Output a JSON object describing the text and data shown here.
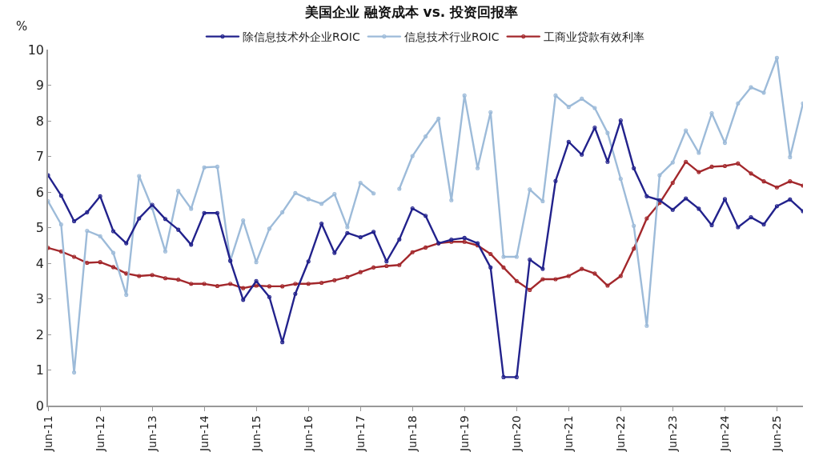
{
  "chart_data": {
    "type": "line",
    "title": "美国企业 融资成本 vs. 投资回报率",
    "ylabel": "%",
    "x": [
      "2011-06",
      "2011-09",
      "2011-12",
      "2012-03",
      "2012-06",
      "2012-09",
      "2012-12",
      "2013-03",
      "2013-06",
      "2013-09",
      "2013-12",
      "2014-03",
      "2014-06",
      "2014-09",
      "2014-12",
      "2015-03",
      "2015-06",
      "2015-09",
      "2015-12",
      "2016-03",
      "2016-06",
      "2016-09",
      "2016-12",
      "2017-03",
      "2017-06",
      "2017-09",
      "2017-12",
      "2018-03",
      "2018-06",
      "2018-09",
      "2018-12",
      "2019-03",
      "2019-06",
      "2019-09",
      "2019-12",
      "2020-03",
      "2020-06",
      "2020-09",
      "2020-12",
      "2021-03",
      "2021-06",
      "2021-09",
      "2021-12",
      "2022-03",
      "2022-06",
      "2022-09",
      "2022-12",
      "2023-03",
      "2023-06",
      "2023-09",
      "2023-12",
      "2024-03",
      "2024-06",
      "2024-09",
      "2024-12",
      "2025-03",
      "2025-06",
      "2025-09",
      "2025-12"
    ],
    "series": [
      {
        "name": "除信息技术外企业ROIC",
        "color": "#22228c",
        "values": [
          6.47,
          5.9,
          5.18,
          5.43,
          5.88,
          4.9,
          4.56,
          5.26,
          5.64,
          5.24,
          4.94,
          4.52,
          5.41,
          5.41,
          4.07,
          2.97,
          3.5,
          3.05,
          1.78,
          3.14,
          4.05,
          5.11,
          4.29,
          4.85,
          4.73,
          4.88,
          4.05,
          4.67,
          5.54,
          5.33,
          4.56,
          4.66,
          4.71,
          4.56,
          3.88,
          0.8,
          0.8,
          4.1,
          3.84,
          6.31,
          7.41,
          7.05,
          7.81,
          6.85,
          8.01,
          6.67,
          5.88,
          5.77,
          5.5,
          5.82,
          5.53,
          5.07,
          5.8,
          5.01,
          5.29,
          5.09,
          5.6,
          5.79,
          5.46
        ]
      },
      {
        "name": "信息技术行业ROIC",
        "color": "#9dbbd9",
        "values": [
          5.74,
          5.09,
          0.93,
          4.91,
          4.76,
          4.29,
          3.11,
          6.45,
          5.55,
          4.33,
          6.03,
          5.53,
          6.69,
          6.71,
          4.07,
          5.2,
          4.03,
          4.97,
          5.43,
          5.97,
          5.8,
          5.67,
          5.94,
          5.01,
          6.26,
          5.96,
          null,
          6.09,
          7.01,
          7.56,
          8.06,
          5.77,
          8.71,
          6.67,
          8.24,
          4.18,
          4.18,
          6.07,
          5.74,
          8.71,
          8.39,
          8.62,
          8.36,
          7.66,
          6.37,
          5.05,
          2.24,
          6.47,
          6.83,
          7.73,
          7.1,
          8.21,
          7.38,
          8.49,
          8.94,
          8.79,
          9.77,
          6.98,
          8.49
        ]
      },
      {
        "name": "工商业贷款有效利率",
        "color": "#a3282c",
        "values": [
          4.43,
          4.33,
          4.18,
          4.01,
          4.03,
          3.89,
          3.71,
          3.64,
          3.67,
          3.58,
          3.54,
          3.42,
          3.42,
          3.36,
          3.42,
          3.3,
          3.37,
          3.35,
          3.35,
          3.42,
          3.42,
          3.45,
          3.52,
          3.61,
          3.75,
          3.88,
          3.92,
          3.95,
          4.31,
          4.44,
          4.56,
          4.6,
          4.6,
          4.5,
          4.26,
          3.88,
          3.5,
          3.25,
          3.55,
          3.55,
          3.64,
          3.84,
          3.71,
          3.37,
          3.64,
          4.41,
          5.26,
          5.69,
          6.26,
          6.85,
          6.56,
          6.71,
          6.73,
          6.8,
          6.52,
          6.3,
          6.13,
          6.3,
          6.18
        ]
      }
    ],
    "xlim": [
      "2011-06",
      "2025-12"
    ],
    "xticks": [
      {
        "value": "2011-06",
        "label": "Jun-11"
      },
      {
        "value": "2012-06",
        "label": "Jun-12"
      },
      {
        "value": "2013-06",
        "label": "Jun-13"
      },
      {
        "value": "2014-06",
        "label": "Jun-14"
      },
      {
        "value": "2015-06",
        "label": "Jun-15"
      },
      {
        "value": "2016-06",
        "label": "Jun-16"
      },
      {
        "value": "2017-06",
        "label": "Jun-17"
      },
      {
        "value": "2018-06",
        "label": "Jun-18"
      },
      {
        "value": "2019-06",
        "label": "Jun-19"
      },
      {
        "value": "2020-06",
        "label": "Jun-20"
      },
      {
        "value": "2021-06",
        "label": "Jun-21"
      },
      {
        "value": "2022-06",
        "label": "Jun-22"
      },
      {
        "value": "2023-06",
        "label": "Jun-23"
      },
      {
        "value": "2024-06",
        "label": "Jun-24"
      },
      {
        "value": "2025-06",
        "label": "Jun-25"
      }
    ],
    "ylim": [
      0,
      10
    ],
    "yticks": [
      0,
      1,
      2,
      3,
      4,
      5,
      6,
      7,
      8,
      9,
      10
    ],
    "legend": "top",
    "marker": "circle",
    "line_style": "solid"
  }
}
